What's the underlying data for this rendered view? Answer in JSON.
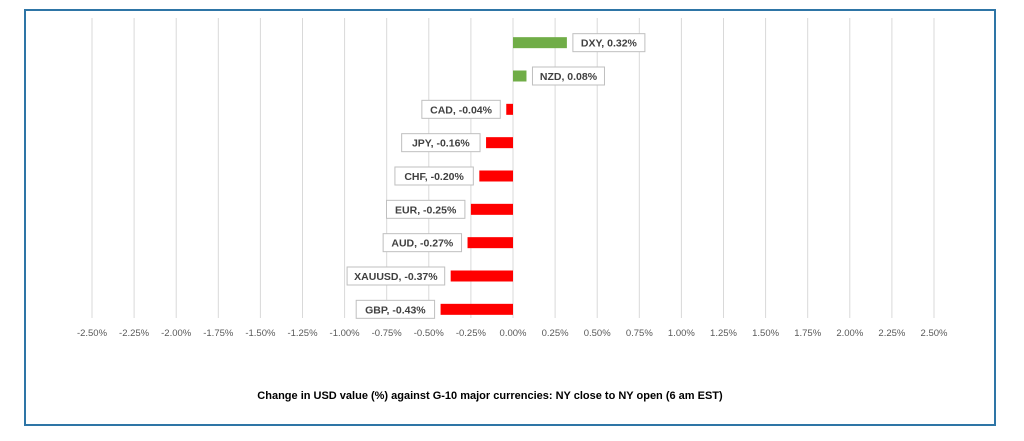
{
  "chart_data": {
    "type": "bar",
    "orientation": "horizontal",
    "title": "Change in  USD value (%)  against  G-10 major currencies:  NY close to NY open  (6 am EST)",
    "xlabel": "",
    "ylabel": "",
    "xlim": [
      -2.5,
      2.5
    ],
    "grid": true,
    "x_ticks": [
      "-2.50%",
      "-2.25%",
      "-2.00%",
      "-1.75%",
      "-1.50%",
      "-1.25%",
      "-1.00%",
      "-0.75%",
      "-0.50%",
      "-0.25%",
      "0.00%",
      "0.25%",
      "0.50%",
      "0.75%",
      "1.00%",
      "1.25%",
      "1.50%",
      "1.75%",
      "2.00%",
      "2.25%",
      "2.50%"
    ],
    "categories": [
      "DXY",
      "NZD",
      "CAD",
      "JPY",
      "CHF",
      "EUR",
      "AUD",
      "XAUUSD",
      "GBP"
    ],
    "values": [
      0.32,
      0.08,
      -0.04,
      -0.16,
      -0.2,
      -0.25,
      -0.27,
      -0.37,
      -0.43
    ],
    "data_labels": [
      "DXY, 0.32%",
      "NZD, 0.08%",
      "CAD, -0.04%",
      "JPY, -0.16%",
      "CHF, -0.20%",
      "EUR, -0.25%",
      "AUD, -0.27%",
      "XAUUSD, -0.37%",
      "GBP, -0.43%"
    ],
    "colors": {
      "positive": "#70ad47",
      "negative": "#ff0000",
      "grid": "#d9d9d9",
      "frame": "#2e75a6"
    }
  }
}
